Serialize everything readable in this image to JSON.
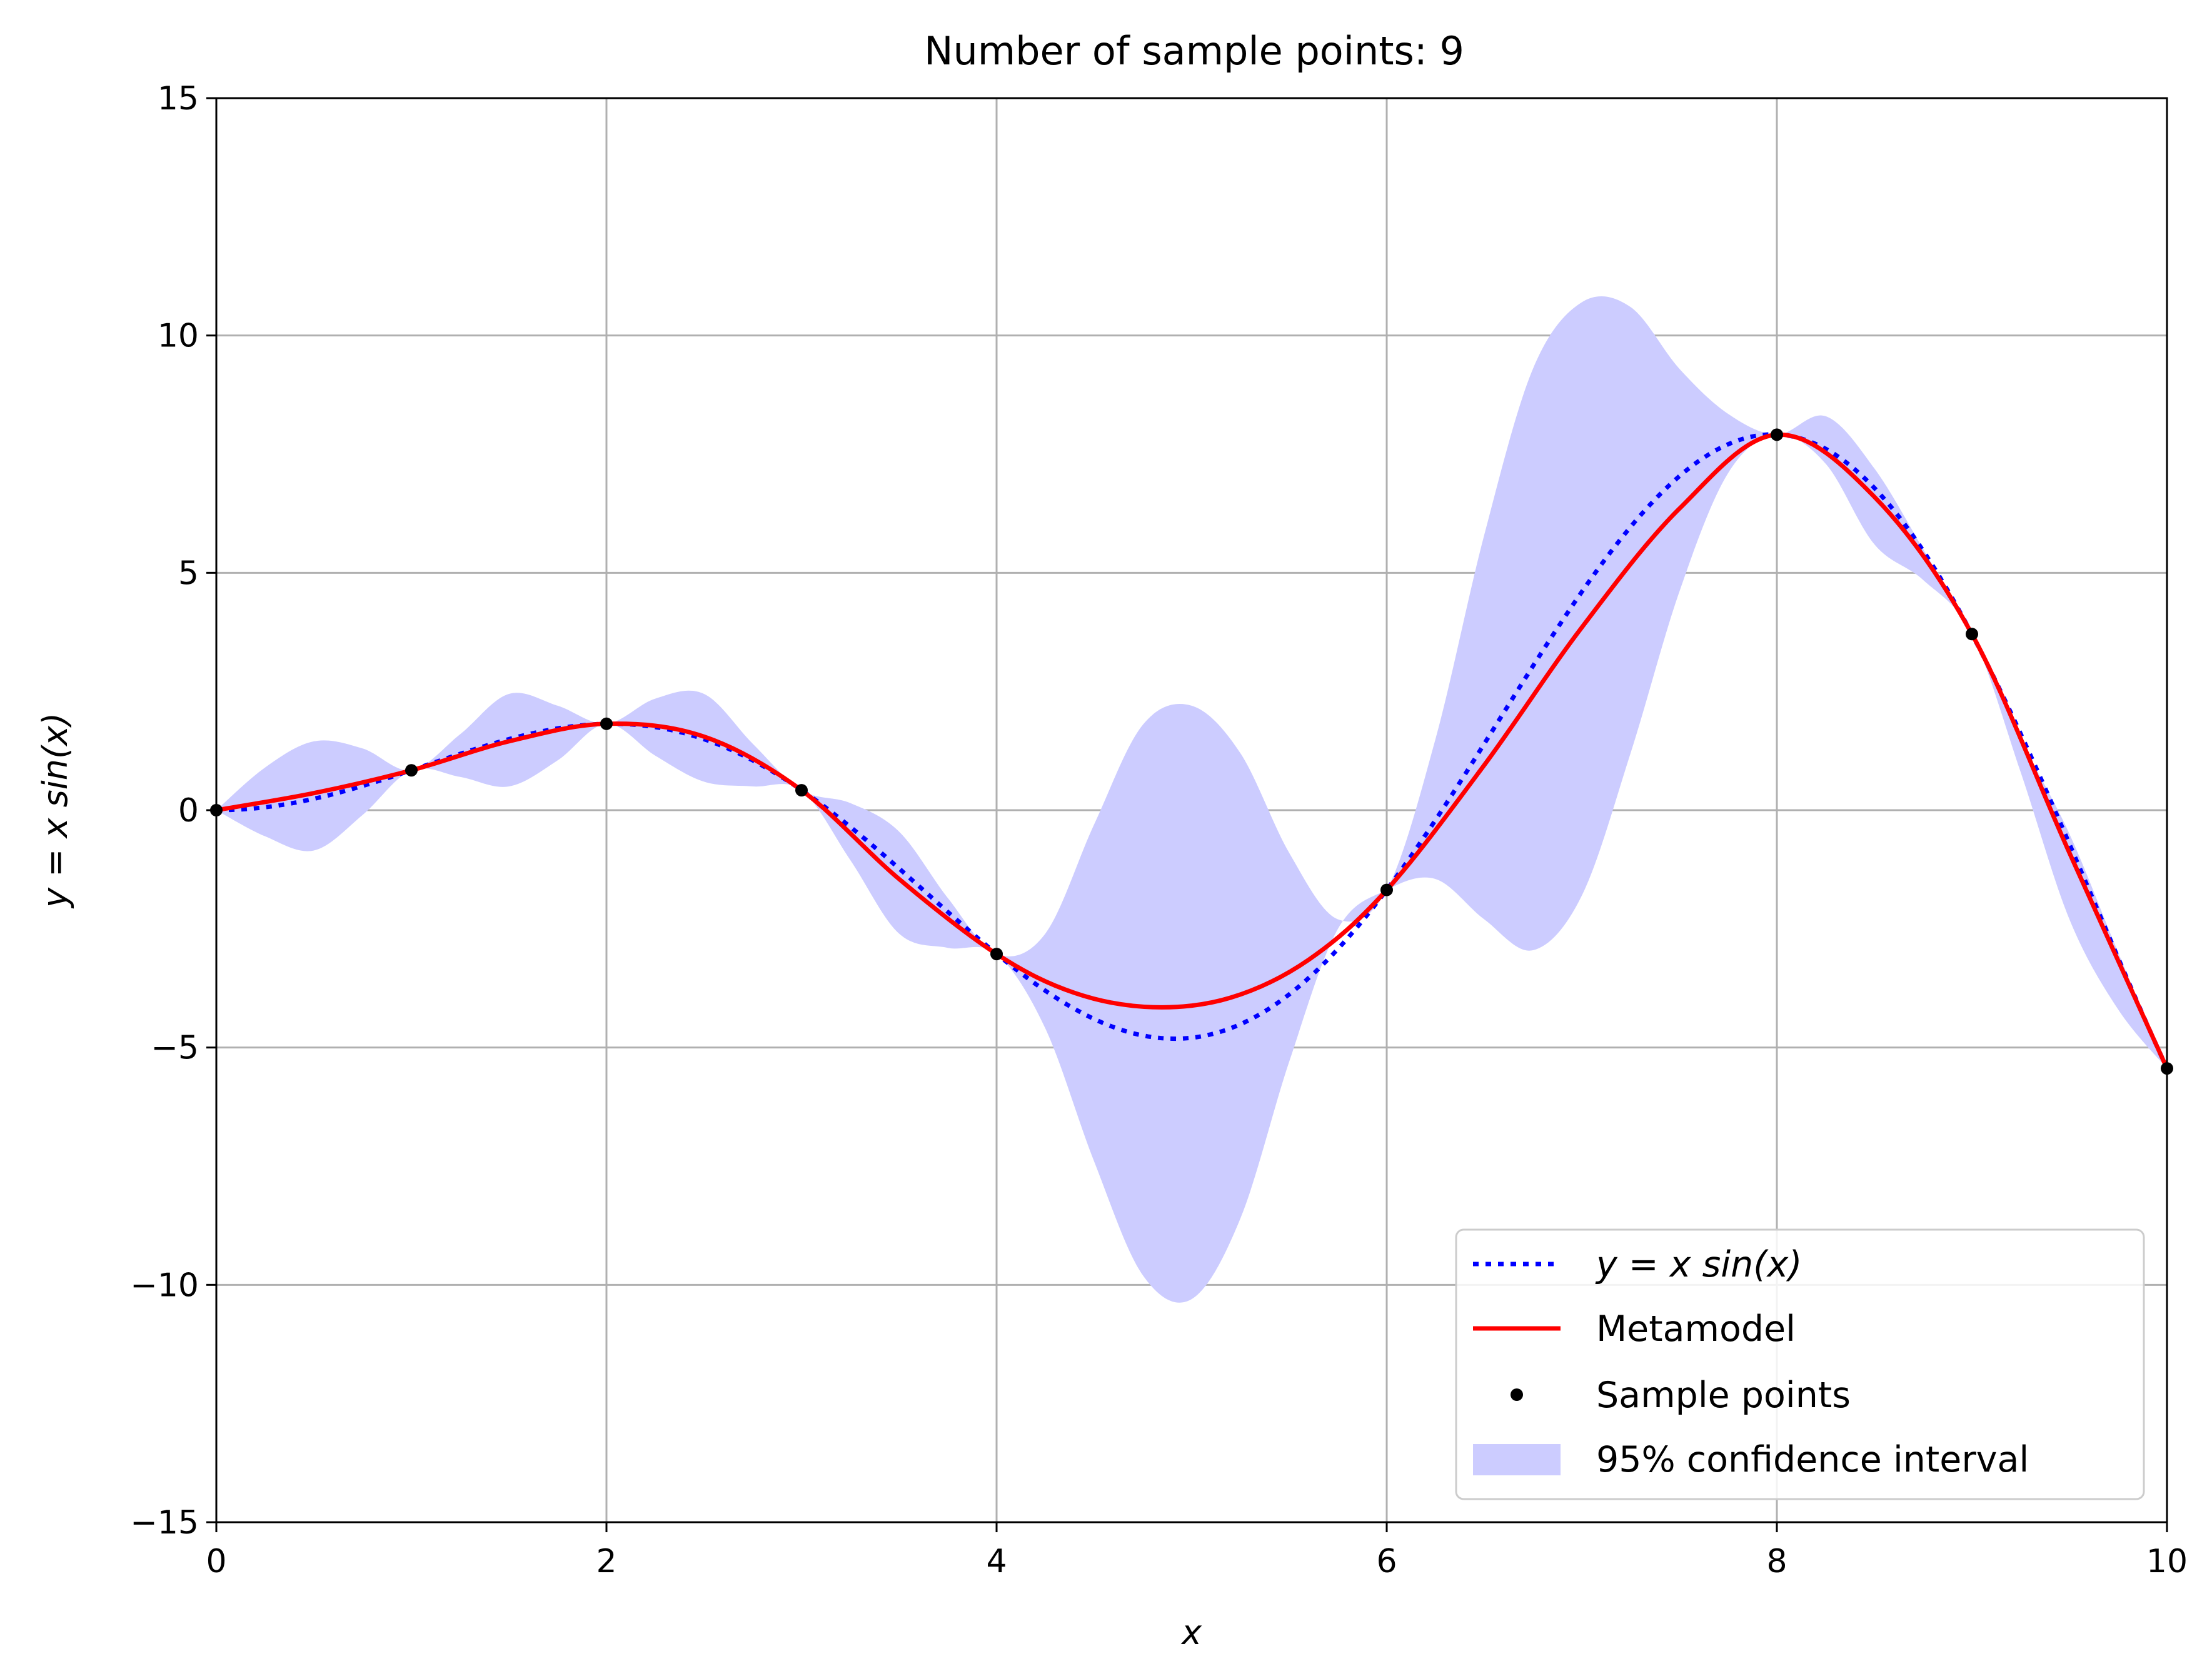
{
  "chart_data": {
    "type": "line",
    "title": "Number of sample points: 9",
    "xlabel": "x",
    "ylabel": "y = x sin(x)",
    "xlim": [
      0,
      10
    ],
    "ylim": [
      -15,
      15
    ],
    "xticks": [
      0,
      2,
      4,
      6,
      8,
      10
    ],
    "yticks": [
      -15,
      -10,
      -5,
      0,
      5,
      10,
      15
    ],
    "xtick_labels": [
      "0",
      "2",
      "4",
      "6",
      "8",
      "10"
    ],
    "ytick_labels": [
      "−15",
      "−10",
      "−5",
      "0",
      "5",
      "10",
      "15"
    ],
    "grid": true,
    "legend_position": "lower-right",
    "legend": {
      "true_function": "y = x sin(x)",
      "metamodel": "Metamodel",
      "samples": "Sample points",
      "confidence": "95% confidence interval"
    },
    "colors": {
      "true_function": "#0000ff",
      "metamodel": "#ff0000",
      "samples": "#000000",
      "confidence": "#ccccff",
      "grid": "#b0b0b0"
    },
    "sample_points": [
      {
        "x": 0,
        "y": 0
      },
      {
        "x": 1,
        "y": 0.84
      },
      {
        "x": 2,
        "y": 1.82
      },
      {
        "x": 3,
        "y": 0.42
      },
      {
        "x": 4,
        "y": -3.03
      },
      {
        "x": 6,
        "y": -1.68
      },
      {
        "x": 8,
        "y": 7.91
      },
      {
        "x": 9,
        "y": 3.71
      },
      {
        "x": 10,
        "y": -5.44
      }
    ],
    "metamodel": {
      "x": [
        0,
        0.5,
        1,
        1.5,
        2,
        2.5,
        3,
        3.5,
        4,
        4.4,
        4.8,
        5.2,
        5.6,
        6,
        6.5,
        7,
        7.5,
        8,
        8.5,
        9,
        9.5,
        10
      ],
      "y": [
        0,
        0.36,
        0.84,
        1.45,
        1.82,
        1.55,
        0.42,
        -1.45,
        -3.03,
        -3.85,
        -4.15,
        -3.95,
        -3.15,
        -1.68,
        0.95,
        3.85,
        6.35,
        7.91,
        6.6,
        3.71,
        -0.9,
        -5.44
      ]
    },
    "confidence_interval": {
      "x": [
        0,
        0.25,
        0.5,
        0.75,
        1,
        1.25,
        1.5,
        1.75,
        2,
        2.25,
        2.5,
        2.75,
        3,
        3.25,
        3.5,
        3.75,
        4,
        4.25,
        4.5,
        4.75,
        5,
        5.25,
        5.5,
        5.75,
        6,
        6.25,
        6.5,
        6.75,
        7,
        7.25,
        7.5,
        7.75,
        8,
        8.25,
        8.5,
        8.75,
        9,
        9.25,
        9.5,
        9.75,
        10
      ],
      "upper": [
        0,
        0.9,
        1.45,
        1.3,
        0.84,
        1.6,
        2.45,
        2.2,
        1.82,
        2.35,
        2.45,
        1.4,
        0.42,
        0.15,
        -0.45,
        -1.85,
        -3.03,
        -2.6,
        -0.3,
        1.8,
        2.2,
        1.2,
        -0.9,
        -2.3,
        -1.68,
        1.5,
        5.8,
        9.3,
        10.7,
        10.6,
        9.3,
        8.35,
        7.91,
        8.3,
        7.2,
        5.5,
        3.71,
        1.5,
        -0.5,
        -3.0,
        -5.44
      ],
      "lower": [
        0,
        -0.55,
        -0.85,
        -0.1,
        0.84,
        0.7,
        0.5,
        1.05,
        1.82,
        1.15,
        0.6,
        0.5,
        0.42,
        -1.05,
        -2.6,
        -2.9,
        -3.03,
        -4.6,
        -7.4,
        -9.8,
        -10.3,
        -8.6,
        -5.3,
        -2.5,
        -1.68,
        -1.45,
        -2.3,
        -2.95,
        -1.8,
        1.2,
        4.6,
        7.1,
        7.91,
        7.3,
        5.6,
        4.85,
        3.71,
        0.8,
        -2.3,
        -4.2,
        -5.44
      ]
    }
  }
}
